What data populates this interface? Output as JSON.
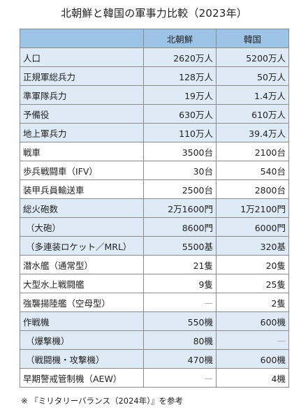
{
  "title": "北朝鮮と韓国の軍事力比較（2023年）",
  "table": {
    "headers": [
      "",
      "北朝鮮",
      "韓国"
    ],
    "rows": [
      {
        "label": "人口",
        "nk": "2620万人",
        "sk": "5200万人",
        "shade": true
      },
      {
        "label": "正規軍総兵力",
        "nk": "128万人",
        "sk": "50万人",
        "shade": true
      },
      {
        "label": "準軍隊兵力",
        "nk": "19万人",
        "sk": "1.4万人",
        "shade": true
      },
      {
        "label": "予備役",
        "nk": "630万人",
        "sk": "610万人",
        "shade": true
      },
      {
        "label": "地上軍兵力",
        "nk": "110万人",
        "sk": "39.4万人",
        "shade": true
      },
      {
        "label": "戦車",
        "nk": "3500台",
        "sk": "2100台",
        "shade": false
      },
      {
        "label": "歩兵戦闘車（IFV）",
        "nk": "30台",
        "sk": "540台",
        "shade": false
      },
      {
        "label": "装甲兵員輸送車",
        "nk": "2500台",
        "sk": "2800台",
        "shade": false
      },
      {
        "label": "総火砲数",
        "nk": "2万1600門",
        "sk": "1万2100門",
        "shade": true
      },
      {
        "label": "（大砲）",
        "nk": "8600門",
        "sk": "6000門",
        "shade": true,
        "sub": true
      },
      {
        "label": "（多連装ロケット／MRL）",
        "nk": "5500基",
        "sk": "320基",
        "shade": true,
        "sub": true
      },
      {
        "label": "潜水艦（通常型）",
        "nk": "21隻",
        "sk": "20隻",
        "shade": false
      },
      {
        "label": "大型水上戦闘艦",
        "nk": "9隻",
        "sk": "25隻",
        "shade": false
      },
      {
        "label": "強襲揚陸艦（空母型）",
        "nk": "—",
        "sk": "2隻",
        "shade": false
      },
      {
        "label": "作戦機",
        "nk": "550機",
        "sk": "600機",
        "shade": true
      },
      {
        "label": "（爆撃機）",
        "nk": "80機",
        "sk": "—",
        "shade": true,
        "sub": true
      },
      {
        "label": "（戦闘機・攻撃機）",
        "nk": "470機",
        "sk": "600機",
        "shade": true,
        "sub": true
      },
      {
        "label": "早期警戒管制機（AEW）",
        "nk": "—",
        "sk": "4機",
        "shade": false
      }
    ]
  },
  "note": "※ 『ミリタリーバランス（2024年）』を参考"
}
